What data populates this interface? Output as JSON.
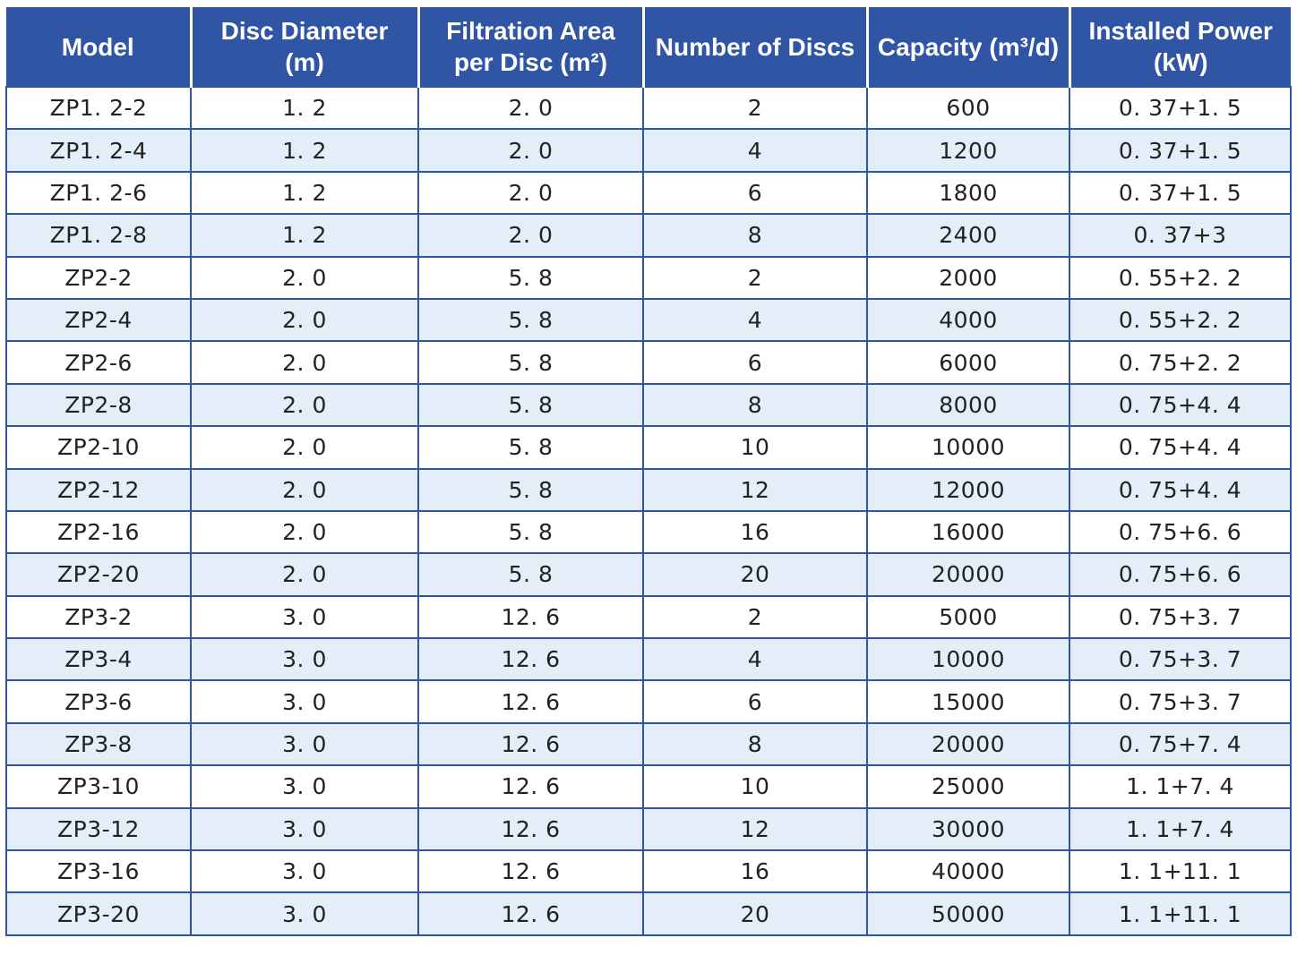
{
  "headers": [
    {
      "line1": "Model",
      "line2": ""
    },
    {
      "line1": "Disc Diameter",
      "line2": "(m)"
    },
    {
      "line1": "Filtration Area",
      "line2": "per Disc (m²)"
    },
    {
      "line1": "Number of Discs",
      "line2": ""
    },
    {
      "line1": "Capacity (m³/d)",
      "line2": ""
    },
    {
      "line1": "Installed Power (kW)",
      "line2": ""
    }
  ],
  "rows": [
    [
      "ZP1. 2-2",
      "1. 2",
      "2. 0",
      "2",
      "600",
      "0. 37+1. 5"
    ],
    [
      "ZP1. 2-4",
      "1. 2",
      "2. 0",
      "4",
      "1200",
      "0. 37+1. 5"
    ],
    [
      "ZP1. 2-6",
      "1. 2",
      "2. 0",
      "6",
      "1800",
      "0. 37+1. 5"
    ],
    [
      "ZP1. 2-8",
      "1. 2",
      "2. 0",
      "8",
      "2400",
      "0. 37+3"
    ],
    [
      "ZP2-2",
      "2. 0",
      "5. 8",
      "2",
      "2000",
      "0. 55+2. 2"
    ],
    [
      "ZP2-4",
      "2. 0",
      "5. 8",
      "4",
      "4000",
      "0. 55+2. 2"
    ],
    [
      "ZP2-6",
      "2. 0",
      "5. 8",
      "6",
      "6000",
      "0. 75+2. 2"
    ],
    [
      "ZP2-8",
      "2. 0",
      "5. 8",
      "8",
      "8000",
      "0. 75+4. 4"
    ],
    [
      "ZP2-10",
      "2. 0",
      "5. 8",
      "10",
      "10000",
      "0. 75+4. 4"
    ],
    [
      "ZP2-12",
      "2. 0",
      "5. 8",
      "12",
      "12000",
      "0. 75+4. 4"
    ],
    [
      "ZP2-16",
      "2. 0",
      "5. 8",
      "16",
      "16000",
      "0. 75+6. 6"
    ],
    [
      "ZP2-20",
      "2. 0",
      "5. 8",
      "20",
      "20000",
      "0. 75+6. 6"
    ],
    [
      "ZP3-2",
      "3. 0",
      "12. 6",
      "2",
      "5000",
      "0. 75+3. 7"
    ],
    [
      "ZP3-4",
      "3. 0",
      "12. 6",
      "4",
      "10000",
      "0. 75+3. 7"
    ],
    [
      "ZP3-6",
      "3. 0",
      "12. 6",
      "6",
      "15000",
      "0. 75+3. 7"
    ],
    [
      "ZP3-8",
      "3. 0",
      "12. 6",
      "8",
      "20000",
      "0. 75+7. 4"
    ],
    [
      "ZP3-10",
      "3. 0",
      "12. 6",
      "10",
      "25000",
      "1. 1+7. 4"
    ],
    [
      "ZP3-12",
      "3. 0",
      "12. 6",
      "12",
      "30000",
      "1. 1+7. 4"
    ],
    [
      "ZP3-16",
      "3. 0",
      "12. 6",
      "16",
      "40000",
      "1. 1+11. 1"
    ],
    [
      "ZP3-20",
      "3. 0",
      "12. 6",
      "20",
      "50000",
      "1. 1+11. 1"
    ]
  ],
  "colors": {
    "header_bg": "#2f55a4",
    "header_text": "#ffffff",
    "stripe_bg": "#e4eef9",
    "border": "#2f55a4"
  }
}
